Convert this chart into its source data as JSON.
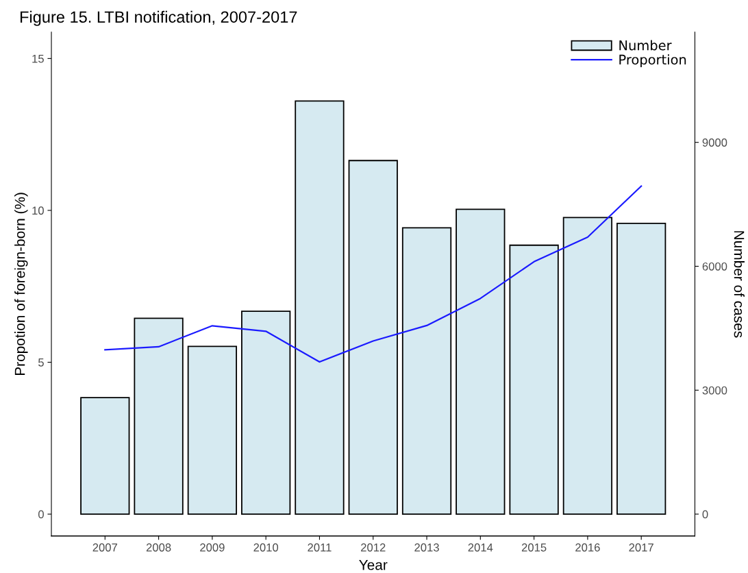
{
  "chart_data": {
    "type": "bar",
    "title": "Figure 15. LTBI notification, 2007-2017",
    "xlabel": "Year",
    "ylabel": "Propotion of foreign-born (%)",
    "y2label": "Number of cases",
    "categories": [
      "2007",
      "2008",
      "2009",
      "2010",
      "2011",
      "2012",
      "2013",
      "2014",
      "2015",
      "2016",
      "2017"
    ],
    "series": [
      {
        "name": "Number",
        "axis": "y2",
        "color": "#d6eaf1",
        "values": [
          2820,
          4740,
          4060,
          4910,
          10000,
          8560,
          6930,
          7380,
          6510,
          7180,
          7040
        ]
      },
      {
        "name": "Proportion",
        "type": "line",
        "color": "#1a1aff",
        "values": [
          5.41,
          5.51,
          6.2,
          6.02,
          5.01,
          5.7,
          6.21,
          7.1,
          8.31,
          9.12,
          10.8
        ]
      }
    ],
    "ylim": [
      -0.72,
      15.87
    ],
    "yticks": [
      0,
      5,
      10,
      15
    ],
    "y2lim": [
      -530,
      11670
    ],
    "y2ticks": [
      0,
      3000,
      6000,
      9000
    ],
    "grid": false,
    "legend": "top right",
    "marker": "none",
    "line_style": "solid"
  }
}
